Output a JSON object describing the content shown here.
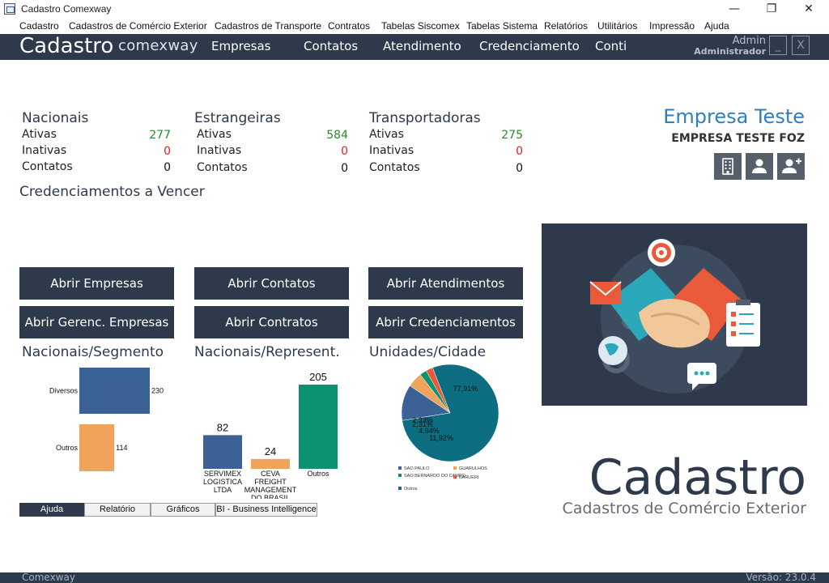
{
  "window": {
    "title": "Cadastro Comexway",
    "minimize": "—",
    "maximize": "❐",
    "close": "✕"
  },
  "menubar": [
    "Cadastro",
    "Cadastros de Comércio Exterior",
    "Cadastros de Transporte",
    "Contratos",
    "Tabelas Siscomex",
    "Tabelas Sistema",
    "Relatórios",
    "Utilitários",
    "Impressão",
    "Ajuda"
  ],
  "header": {
    "brand": "Cadastro",
    "brand_sub": "comexway",
    "nav": [
      "Empresas",
      "Contatos",
      "Atendimento",
      "Credenciamento",
      "Conti"
    ],
    "user_name": "Admin",
    "user_role": "Administrador",
    "min_btn": "_",
    "close_btn": "X"
  },
  "stats": {
    "nacionais": {
      "title": "Nacionais",
      "ativas_label": "Ativas",
      "ativas": "277",
      "inativas_label": "Inativas",
      "inativas": "0",
      "contatos_label": "Contatos",
      "contatos": "0"
    },
    "estrangeiras": {
      "title": "Estrangeiras",
      "ativas_label": "Ativas",
      "ativas": "584",
      "inativas_label": "Inativas",
      "inativas": "0",
      "contatos_label": "Contatos",
      "contatos": "0"
    },
    "transportadoras": {
      "title": "Transportadoras",
      "ativas_label": "Ativas",
      "ativas": "275",
      "inativas_label": "Inativas",
      "inativas": "0",
      "contatos_label": "Contatos",
      "contatos": "0"
    }
  },
  "credenciamentos_title": "Credenciamentos a Vencer",
  "company": {
    "name": "Empresa Teste",
    "sub": "EMPRESA TESTE FOZ"
  },
  "company_icons": [
    "building-icon",
    "user-icon",
    "user-add-icon"
  ],
  "buttons": {
    "abrir_empresas": "Abrir Empresas",
    "abrir_contatos": "Abrir Contatos",
    "abrir_atendimentos": "Abrir Atendimentos",
    "abrir_gerenc_empresas": "Abrir Gerenc. Empresas",
    "abrir_contratos": "Abrir Contratos",
    "abrir_credenciamentos": "Abrir Credenciamentos"
  },
  "colors": {
    "dark": "#2e3a4b",
    "blue_bar": "#3b6295",
    "orange_bar": "#f0a35a",
    "teal": "#0c9271",
    "pie_main": "#0c6e80",
    "brand_blue": "#2f7fbf"
  },
  "chart_data": [
    {
      "type": "bar",
      "orientation": "horizontal",
      "title": "Nacionais/Segmento",
      "categories": [
        "Diversos",
        "Outros"
      ],
      "values": [
        230,
        114
      ]
    },
    {
      "type": "bar",
      "orientation": "vertical",
      "title": "Nacionais/Represent.",
      "categories": [
        "SERVIMEX LOGISTICA LTDA",
        "CEVA FREIGHT MANAGEMENT DO BRASIL",
        "Outros"
      ],
      "category_lines": [
        [
          "SERVIMEX",
          "LOGISTICA",
          "LTDA"
        ],
        [
          "CEVA",
          "FREIGHT",
          "MANAGEMENT",
          "DO BRASIL"
        ],
        [
          "Outros"
        ]
      ],
      "values": [
        82,
        24,
        205
      ]
    },
    {
      "type": "pie",
      "title": "Unidades/Cidade",
      "labels": [
        "SAO PAULO",
        "GUARULHOS",
        "SAO BERNARDO DO CAMPO",
        "BARUERI",
        "Outros"
      ],
      "values": [
        11.92,
        4.94,
        2.31,
        2.33,
        77.91
      ],
      "value_labels": [
        "11,92%",
        "4,94%",
        "2,31%",
        "2,33%",
        "77,91%"
      ]
    }
  ],
  "tabs": [
    "Ajuda",
    "Relatório",
    "Gráficos",
    "BI - Business Intelligence"
  ],
  "big_title": "Cadastro",
  "big_sub": "Cadastros de Comércio Exterior",
  "footer": {
    "left": "Comexway",
    "right": "Versão: 23.0.4"
  }
}
